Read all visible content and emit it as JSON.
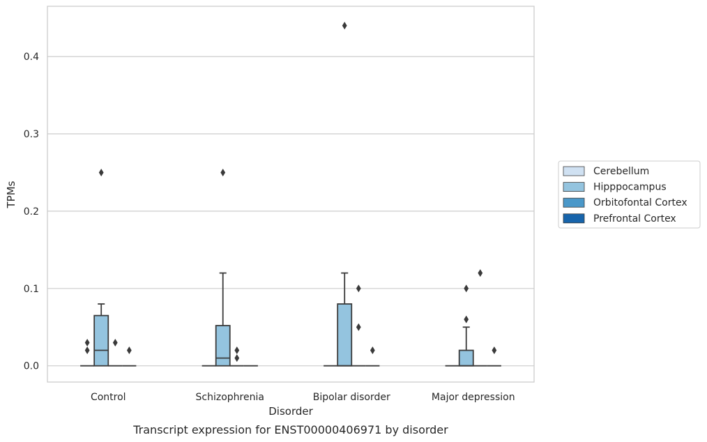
{
  "chart_data": {
    "type": "box",
    "caption": "Transcript expression for ENST00000406971 by disorder",
    "xlabel": "Disorder",
    "ylabel": "TPMs",
    "ylim": [
      -0.021,
      0.465
    ],
    "yticks": [
      0.0,
      0.1,
      0.2,
      0.3,
      0.4
    ],
    "ytick_labels": [
      "0.0",
      "0.1",
      "0.2",
      "0.3",
      "0.4"
    ],
    "grid": true,
    "legend_position": "right",
    "categories": [
      "Control",
      "Schizophrenia",
      "Bipolar disorder",
      "Major depression"
    ],
    "series": [
      {
        "name": "Cerebellum",
        "color": "#d0e1f2",
        "boxes": [
          {
            "q1": 0,
            "median": 0,
            "q3": 0,
            "whisker_low": 0,
            "whisker_high": 0,
            "outliers": [
              0.02,
              0.03
            ]
          },
          {
            "q1": 0,
            "median": 0,
            "q3": 0,
            "whisker_low": 0,
            "whisker_high": 0,
            "outliers": []
          },
          {
            "q1": 0,
            "median": 0,
            "q3": 0,
            "whisker_low": 0,
            "whisker_high": 0,
            "outliers": []
          },
          {
            "q1": 0,
            "median": 0,
            "q3": 0,
            "whisker_low": 0,
            "whisker_high": 0,
            "outliers": []
          }
        ]
      },
      {
        "name": "Hipppocampus",
        "color": "#94c4df",
        "boxes": [
          {
            "q1": 0,
            "median": 0.02,
            "q3": 0.065,
            "whisker_low": 0,
            "whisker_high": 0.08,
            "outliers": [
              0.25
            ]
          },
          {
            "q1": 0,
            "median": 0.01,
            "q3": 0.052,
            "whisker_low": 0,
            "whisker_high": 0.12,
            "outliers": [
              0.25
            ]
          },
          {
            "q1": 0,
            "median": 0,
            "q3": 0.08,
            "whisker_low": 0,
            "whisker_high": 0.12,
            "outliers": [
              0.44
            ]
          },
          {
            "q1": 0,
            "median": 0,
            "q3": 0.02,
            "whisker_low": 0,
            "whisker_high": 0.05,
            "outliers": [
              0.06,
              0.1
            ]
          }
        ]
      },
      {
        "name": "Orbitofontal Cortex",
        "color": "#4a98c9",
        "boxes": [
          {
            "q1": 0,
            "median": 0,
            "q3": 0,
            "whisker_low": 0,
            "whisker_high": 0,
            "outliers": [
              0.03
            ]
          },
          {
            "q1": 0,
            "median": 0,
            "q3": 0,
            "whisker_low": 0,
            "whisker_high": 0,
            "outliers": [
              0.01,
              0.02
            ]
          },
          {
            "q1": 0,
            "median": 0,
            "q3": 0,
            "whisker_low": 0,
            "whisker_high": 0,
            "outliers": [
              0.05,
              0.1
            ]
          },
          {
            "q1": 0,
            "median": 0,
            "q3": 0,
            "whisker_low": 0,
            "whisker_high": 0,
            "outliers": [
              0.12
            ]
          }
        ]
      },
      {
        "name": "Prefrontal Cortex",
        "color": "#1764ab",
        "boxes": [
          {
            "q1": 0,
            "median": 0,
            "q3": 0,
            "whisker_low": 0,
            "whisker_high": 0,
            "outliers": [
              0.02
            ]
          },
          {
            "q1": 0,
            "median": 0,
            "q3": 0,
            "whisker_low": 0,
            "whisker_high": 0,
            "outliers": []
          },
          {
            "q1": 0,
            "median": 0,
            "q3": 0,
            "whisker_low": 0,
            "whisker_high": 0,
            "outliers": [
              0.02
            ]
          },
          {
            "q1": 0,
            "median": 0,
            "q3": 0,
            "whisker_low": 0,
            "whisker_high": 0,
            "outliers": [
              0.02
            ]
          }
        ]
      }
    ]
  }
}
